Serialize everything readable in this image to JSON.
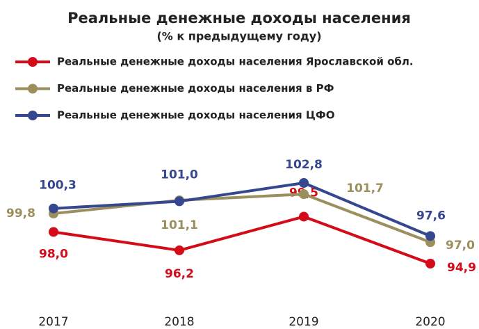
{
  "chart_data": {
    "type": "line",
    "title": "Реальные денежные доходы населения",
    "subtitle": "(% к предыдущему году)",
    "categories": [
      "2017",
      "2018",
      "2019",
      "2020"
    ],
    "series": [
      {
        "name": "Реальные денежные доходы населения Ярославской обл.",
        "color": "#d40b18",
        "values": [
          98.0,
          96.2,
          99.5,
          94.9
        ],
        "value_labels": [
          "98,0",
          "96,2",
          "99,5",
          "94,9"
        ]
      },
      {
        "name": "Реальные денежные доходы населения в РФ",
        "color": "#9b8f5e",
        "values": [
          99.8,
          101.1,
          101.7,
          97.0
        ],
        "value_labels": [
          "99,8",
          "101,1",
          "101,7",
          "97,0"
        ]
      },
      {
        "name": "Реальные денежные доходы населения ЦФО",
        "color": "#35478f",
        "values": [
          100.3,
          101.0,
          102.8,
          97.6
        ],
        "value_labels": [
          "100,3",
          "101,0",
          "102,8",
          "97,6"
        ]
      }
    ],
    "legend": "top-left"
  }
}
